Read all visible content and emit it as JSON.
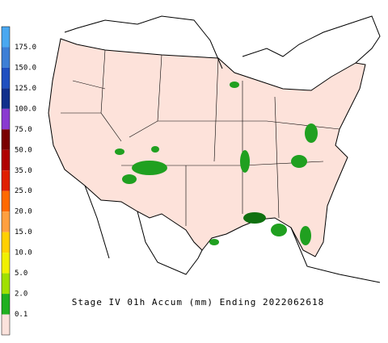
{
  "legend": {
    "items": [
      {
        "label": "175.0",
        "color": "#3d7fd6"
      },
      {
        "label": "150.0",
        "color": "#1f4fc0"
      },
      {
        "label": "125.0",
        "color": "#102f8c"
      },
      {
        "label": "100.0",
        "color": "#8a3ad0"
      },
      {
        "label": "75.0",
        "color": "#7a0000"
      },
      {
        "label": "50.0",
        "color": "#b00000"
      },
      {
        "label": "35.0",
        "color": "#e02000"
      },
      {
        "label": "25.0",
        "color": "#ff6a00"
      },
      {
        "label": "20.0",
        "color": "#ffa040"
      },
      {
        "label": "15.0",
        "color": "#ffd000"
      },
      {
        "label": "10.0",
        "color": "#f0f000"
      },
      {
        "label": "5.0",
        "color": "#a0e000"
      },
      {
        "label": "2.0",
        "color": "#20b020"
      },
      {
        "label": "0.1",
        "color": "#107010"
      }
    ],
    "base_color": "#fbe2dc",
    "top_color": "#4aa8f0"
  },
  "caption": "Stage IV 01h Accum (mm) Ending 2022062618"
}
